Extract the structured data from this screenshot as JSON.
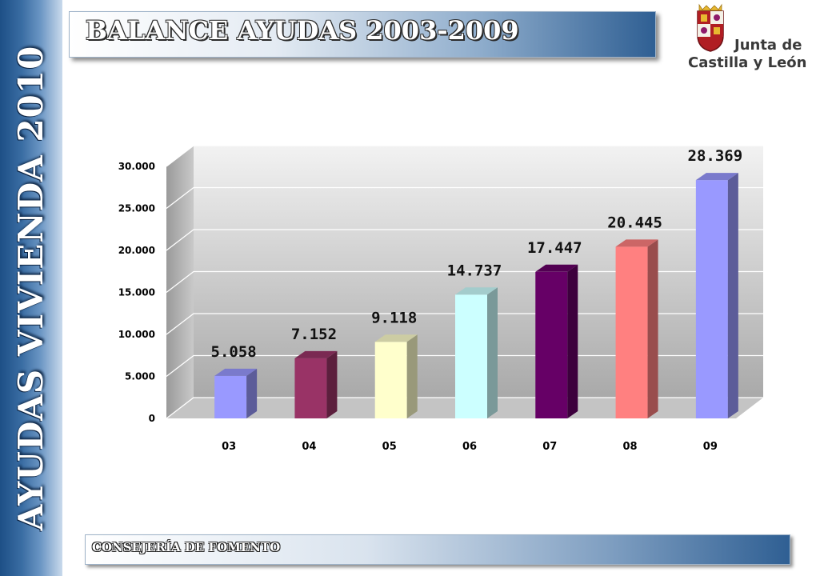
{
  "side": {
    "title": "AYUDAS VIVIENDA 2010"
  },
  "header": {
    "title": "BALANCE AYUDAS 2003-2009"
  },
  "logo": {
    "line1": "Junta de",
    "line2": "Castilla y León"
  },
  "footer": {
    "label": "CONSEJERÍA DE FOMENTO"
  },
  "chart_data": {
    "type": "bar",
    "categories": [
      "03",
      "04",
      "05",
      "06",
      "07",
      "08",
      "09"
    ],
    "values": [
      5058,
      7152,
      9118,
      14737,
      17447,
      20445,
      28369
    ],
    "value_labels": [
      "5.058",
      "7.152",
      "9.118",
      "14.737",
      "17.447",
      "20.445",
      "28.369"
    ],
    "bar_colors": [
      "#9999ff",
      "#993366",
      "#ffffcc",
      "#ccffff",
      "#660066",
      "#ff8080",
      "#9999ff"
    ],
    "ylim": [
      0,
      30000
    ],
    "yticks": [
      0,
      5000,
      10000,
      15000,
      20000,
      25000,
      30000
    ],
    "ytick_labels": [
      "0",
      "5.000",
      "10.000",
      "15.000",
      "20.000",
      "25.000",
      "30.000"
    ],
    "grid": true,
    "style": "3d"
  }
}
